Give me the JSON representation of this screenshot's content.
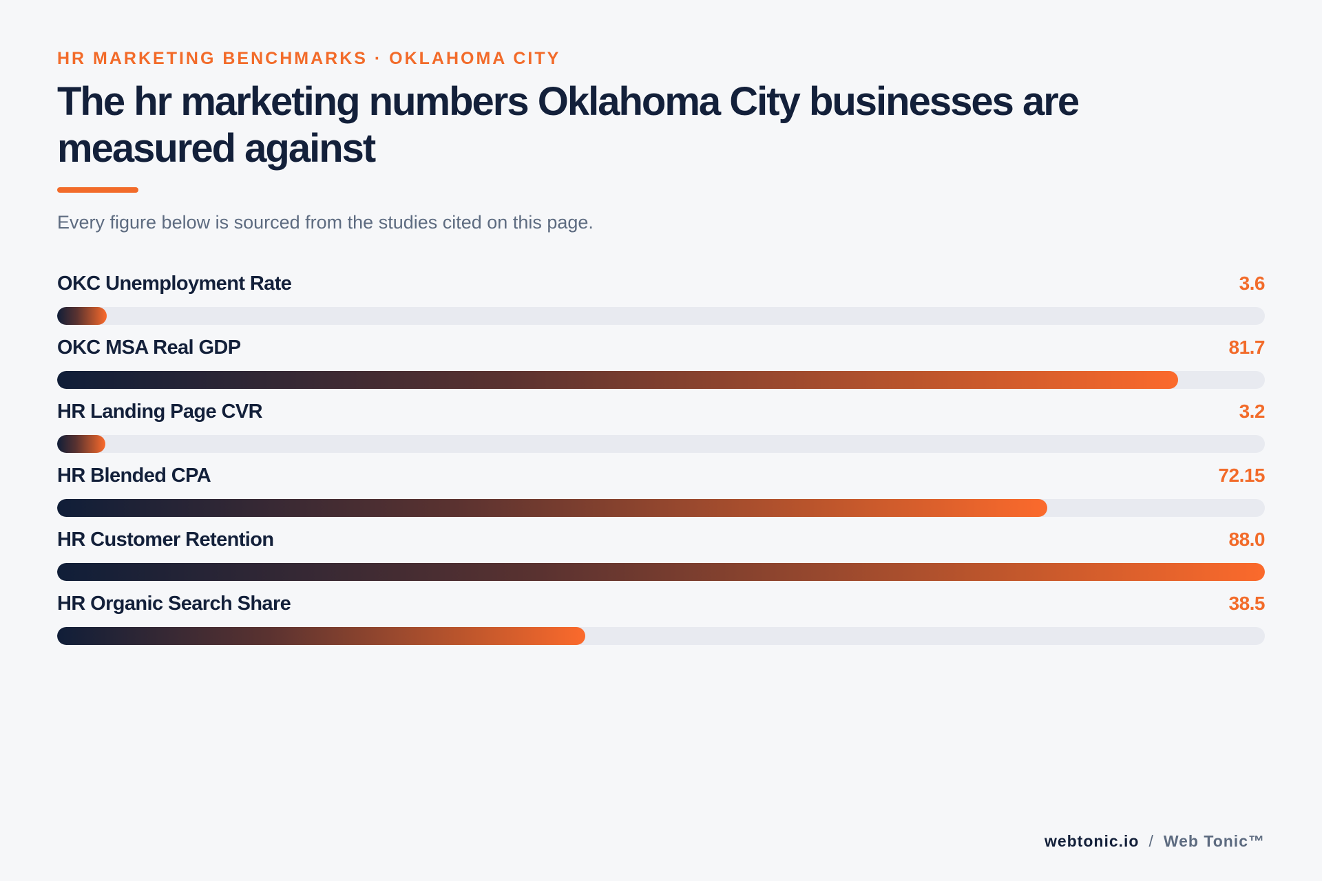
{
  "header": {
    "eyebrow": "HR MARKETING BENCHMARKS · OKLAHOMA CITY",
    "title": "The hr marketing numbers Oklahoma City businesses are measured against",
    "subtitle": "Every figure below is sourced from the studies cited on this page."
  },
  "colors": {
    "accent": "#f26b2a",
    "navy": "#13203a",
    "muted": "#5d6b80",
    "track": "#e8eaf0",
    "gradient_start": "#101e38",
    "gradient_end": "#fb6a2c"
  },
  "chart_data": {
    "type": "bar",
    "orientation": "horizontal",
    "title": "The hr marketing numbers Oklahoma City businesses are measured against",
    "categories": [
      "OKC Unemployment Rate",
      "OKC MSA Real GDP",
      "HR Landing Page CVR",
      "HR Blended CPA",
      "HR Customer Retention",
      "HR Organic Search Share"
    ],
    "values": [
      3.6,
      81.7,
      3.2,
      72.15,
      88.0,
      38.5
    ],
    "value_labels": [
      "3.6",
      "81.7",
      "3.2",
      "72.15",
      "88.0",
      "38.5"
    ],
    "xlim": [
      0,
      88.0
    ],
    "grid": false,
    "legend": "none"
  },
  "footer": {
    "domain": "webtonic.io",
    "separator": "/",
    "brand": "Web Tonic™"
  }
}
